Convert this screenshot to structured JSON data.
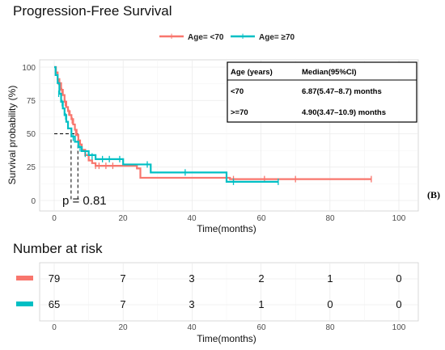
{
  "chart_data": {
    "type": "line",
    "title": "Progression-Free Survival",
    "xlabel": "Time(months)",
    "ylabel": "Survival probability (%)",
    "xlim": [
      0,
      100
    ],
    "ylim": [
      0,
      100
    ],
    "x_ticks": [
      "0",
      "20",
      "40",
      "60",
      "80",
      "100"
    ],
    "y_ticks": [
      "0",
      "25",
      "50",
      "75",
      "100"
    ],
    "grid": true,
    "legend_position": "top",
    "legend_prefix": "",
    "p_value_text": "p = 0.81",
    "panel_label": "(B)",
    "series": [
      {
        "name": "Age= <70",
        "color": "#F8766D",
        "steps": [
          [
            0,
            100
          ],
          [
            0.5,
            96
          ],
          [
            1,
            91
          ],
          [
            1.5,
            88
          ],
          [
            2,
            83
          ],
          [
            2.5,
            79
          ],
          [
            3,
            74
          ],
          [
            3.5,
            70
          ],
          [
            4,
            67
          ],
          [
            4.5,
            64
          ],
          [
            5,
            61
          ],
          [
            5.5,
            57
          ],
          [
            6,
            53
          ],
          [
            6.5,
            49
          ],
          [
            7,
            45
          ],
          [
            7.5,
            42
          ],
          [
            8,
            38
          ],
          [
            9,
            34
          ],
          [
            10,
            30
          ],
          [
            11,
            28
          ],
          [
            12,
            26
          ],
          [
            20,
            26
          ],
          [
            24,
            24
          ],
          [
            25,
            17
          ],
          [
            50,
            17
          ],
          [
            51,
            16
          ],
          [
            92,
            16
          ]
        ],
        "censor": [
          [
            1.2,
            89
          ],
          [
            2.2,
            82
          ],
          [
            3.2,
            73
          ],
          [
            4.2,
            66
          ],
          [
            5.2,
            60
          ],
          [
            6.2,
            51
          ],
          [
            12,
            26
          ],
          [
            13,
            26
          ],
          [
            15,
            26
          ],
          [
            17,
            26
          ],
          [
            52,
            16
          ],
          [
            61,
            16
          ],
          [
            70,
            16
          ],
          [
            92,
            16
          ]
        ]
      },
      {
        "name": "Age= ≥70",
        "color": "#00BFC4",
        "steps": [
          [
            0,
            100
          ],
          [
            0.4,
            94
          ],
          [
            1,
            88
          ],
          [
            1.5,
            80
          ],
          [
            2,
            74
          ],
          [
            2.5,
            69
          ],
          [
            3,
            64
          ],
          [
            3.5,
            59
          ],
          [
            4,
            54
          ],
          [
            5,
            48
          ],
          [
            6,
            44
          ],
          [
            7,
            40
          ],
          [
            8,
            37
          ],
          [
            10,
            34
          ],
          [
            12,
            31
          ],
          [
            20,
            27
          ],
          [
            28,
            21
          ],
          [
            50,
            14
          ],
          [
            65,
            14
          ]
        ],
        "censor": [
          [
            1.3,
            80
          ],
          [
            2.3,
            73
          ],
          [
            3.3,
            63
          ],
          [
            5.5,
            47
          ],
          [
            7.5,
            39
          ],
          [
            9,
            35
          ],
          [
            11,
            33
          ],
          [
            14,
            31
          ],
          [
            16,
            31
          ],
          [
            19,
            31
          ],
          [
            27,
            27
          ],
          [
            38,
            21
          ],
          [
            52,
            14
          ],
          [
            65,
            14
          ]
        ]
      }
    ],
    "median_lines": [
      {
        "x": 4.9,
        "y": 50
      },
      {
        "x": 6.87,
        "y": 50
      }
    ],
    "median_table": {
      "header": [
        "Age (years)",
        "Median(95%CI)"
      ],
      "rows": [
        [
          "<70",
          "6.87(5.47–8.7) months"
        ],
        [
          ">=70",
          "4.90(3.47–10.9) months"
        ]
      ]
    },
    "risk_table": {
      "title": "Number at risk",
      "xlabel": "Time(months)",
      "times": [
        0,
        20,
        40,
        60,
        80,
        100
      ],
      "x_ticks": [
        "0",
        "20",
        "40",
        "60",
        "80",
        "100"
      ],
      "rows": [
        {
          "color": "#F8766D",
          "values": [
            "79",
            "7",
            "3",
            "2",
            "1",
            "0"
          ]
        },
        {
          "color": "#00BFC4",
          "values": [
            "65",
            "7",
            "3",
            "1",
            "0",
            "0"
          ]
        }
      ]
    }
  }
}
